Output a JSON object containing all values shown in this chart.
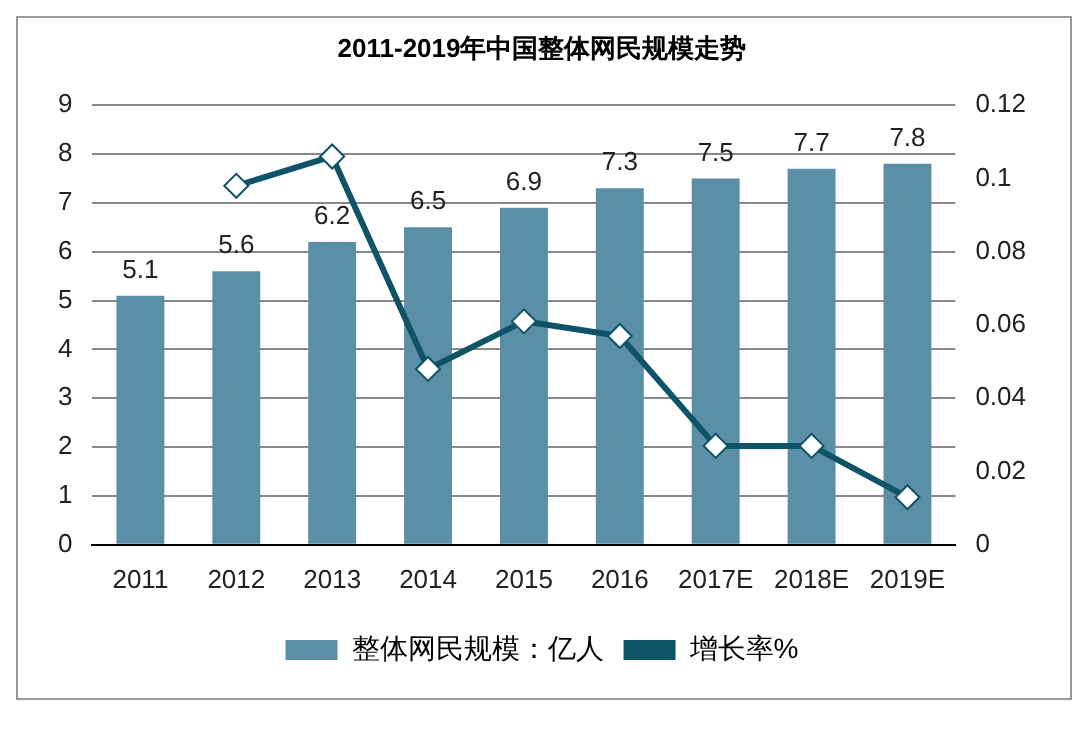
{
  "chart_data": {
    "type": "bar",
    "title": "2011-2019年中国整体网民规模走势",
    "categories": [
      "2011",
      "2012",
      "2013",
      "2014",
      "2015",
      "2016",
      "2017E",
      "2018E",
      "2019E"
    ],
    "series": [
      {
        "name": "整体网民规模：亿人",
        "color": "#5b8fa8",
        "values": [
          5.1,
          5.6,
          6.2,
          6.5,
          6.9,
          7.3,
          7.5,
          7.7,
          7.8
        ],
        "value_labels": [
          "5.1",
          "5.6",
          "6.2",
          "6.5",
          "6.9",
          "7.3",
          "7.5",
          "7.7",
          "7.8"
        ]
      },
      {
        "name": "增长率%",
        "type": "line",
        "axis": "y2",
        "color": "#0e5368",
        "marker": "diamond",
        "values": [
          null,
          0.098,
          0.106,
          0.048,
          0.061,
          0.057,
          0.027,
          0.027,
          0.013
        ]
      }
    ],
    "ylim": [
      0,
      9
    ],
    "yticks": [
      0,
      1,
      2,
      3,
      4,
      5,
      6,
      7,
      8,
      9
    ],
    "y2lim": [
      0,
      0.12
    ],
    "y2ticks": [
      0,
      0.02,
      0.04,
      0.06,
      0.08,
      0.1,
      0.12
    ],
    "grid": "y",
    "legend": "bottom"
  }
}
